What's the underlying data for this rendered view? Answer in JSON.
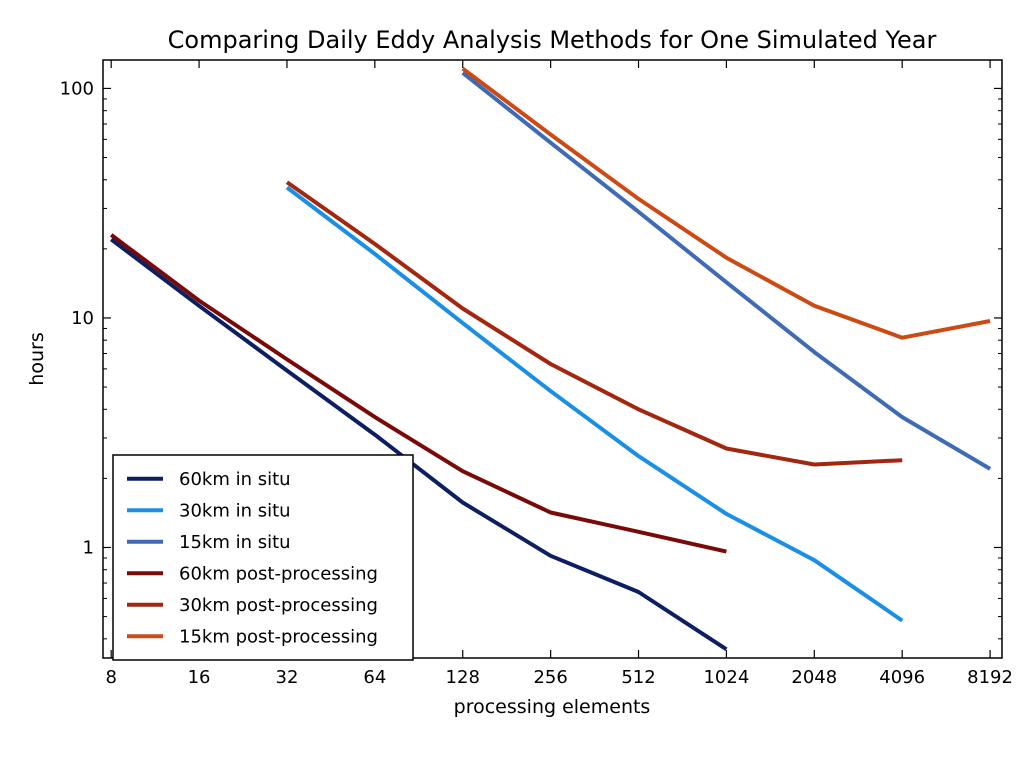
{
  "chart_data": {
    "type": "line",
    "title": "Comparing Daily Eddy Analysis Methods for One Simulated Year",
    "xlabel": "processing elements",
    "ylabel": "hours",
    "x_scale": "log2",
    "y_scale": "log",
    "xlim": [
      7.5,
      9000
    ],
    "ylim": [
      0.33,
      133
    ],
    "x_ticks": [
      8,
      16,
      32,
      64,
      128,
      256,
      512,
      1024,
      2048,
      4096,
      8192
    ],
    "x_tick_labels": [
      "8",
      "16",
      "32",
      "64",
      "128",
      "256",
      "512",
      "1024",
      "2048",
      "4096",
      "8192"
    ],
    "y_ticks": [
      1,
      10,
      100
    ],
    "y_tick_labels": [
      "1",
      "10",
      "100"
    ],
    "grid": false,
    "legend_position": "lower-left",
    "series": [
      {
        "name": "60km in situ",
        "color": "#0d1f63",
        "x": [
          8,
          16,
          32,
          64,
          128,
          256,
          512,
          1024
        ],
        "y": [
          22,
          11.3,
          5.9,
          3.1,
          1.57,
          0.92,
          0.64,
          0.36
        ]
      },
      {
        "name": "30km in situ",
        "color": "#1a8fe3",
        "x": [
          32,
          64,
          128,
          256,
          512,
          1024,
          2048,
          4096
        ],
        "y": [
          37,
          19,
          9.5,
          4.8,
          2.5,
          1.4,
          0.88,
          0.48
        ]
      },
      {
        "name": "15km in situ",
        "color": "#3f6ab6",
        "x": [
          128,
          256,
          512,
          1024,
          2048,
          4096,
          8192
        ],
        "y": [
          117,
          58,
          29,
          14.3,
          7.1,
          3.7,
          2.2
        ]
      },
      {
        "name": "60km post-processing",
        "color": "#7a0a08",
        "x": [
          8,
          16,
          32,
          64,
          128,
          256,
          512,
          1024
        ],
        "y": [
          23,
          11.9,
          6.6,
          3.7,
          2.15,
          1.42,
          1.17,
          0.96
        ]
      },
      {
        "name": "30km post-processing",
        "color": "#a3260f",
        "x": [
          32,
          64,
          128,
          256,
          512,
          1024,
          2048,
          4096
        ],
        "y": [
          39,
          21,
          11,
          6.3,
          4.0,
          2.7,
          2.3,
          2.4
        ]
      },
      {
        "name": "15km post-processing",
        "color": "#cc4a14",
        "x": [
          128,
          256,
          512,
          1024,
          2048,
          4096,
          8192
        ],
        "y": [
          122,
          63,
          33,
          18.3,
          11.3,
          8.2,
          9.7
        ]
      }
    ]
  }
}
